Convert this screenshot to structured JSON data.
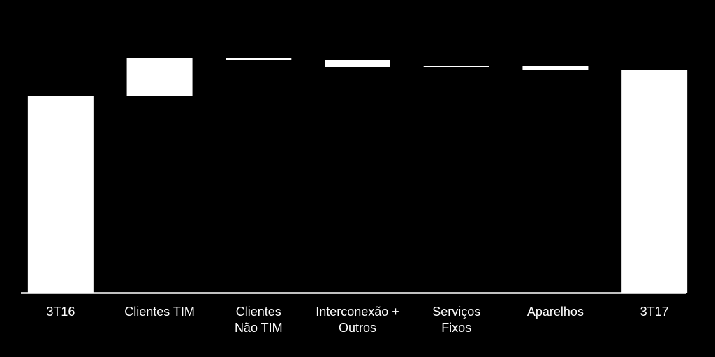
{
  "chart_data": {
    "type": "waterfall",
    "categories": [
      "3T16",
      "Clientes TIM",
      "Clientes\nNão TIM",
      "Interconexão +\nOutros",
      "Serviços\nFixos",
      "Aparelhos",
      "3T17"
    ],
    "values": [
      283,
      54,
      -3,
      -10,
      2,
      -6,
      320
    ],
    "color": "#ffffff",
    "ylim": [
      0,
      340
    ]
  }
}
